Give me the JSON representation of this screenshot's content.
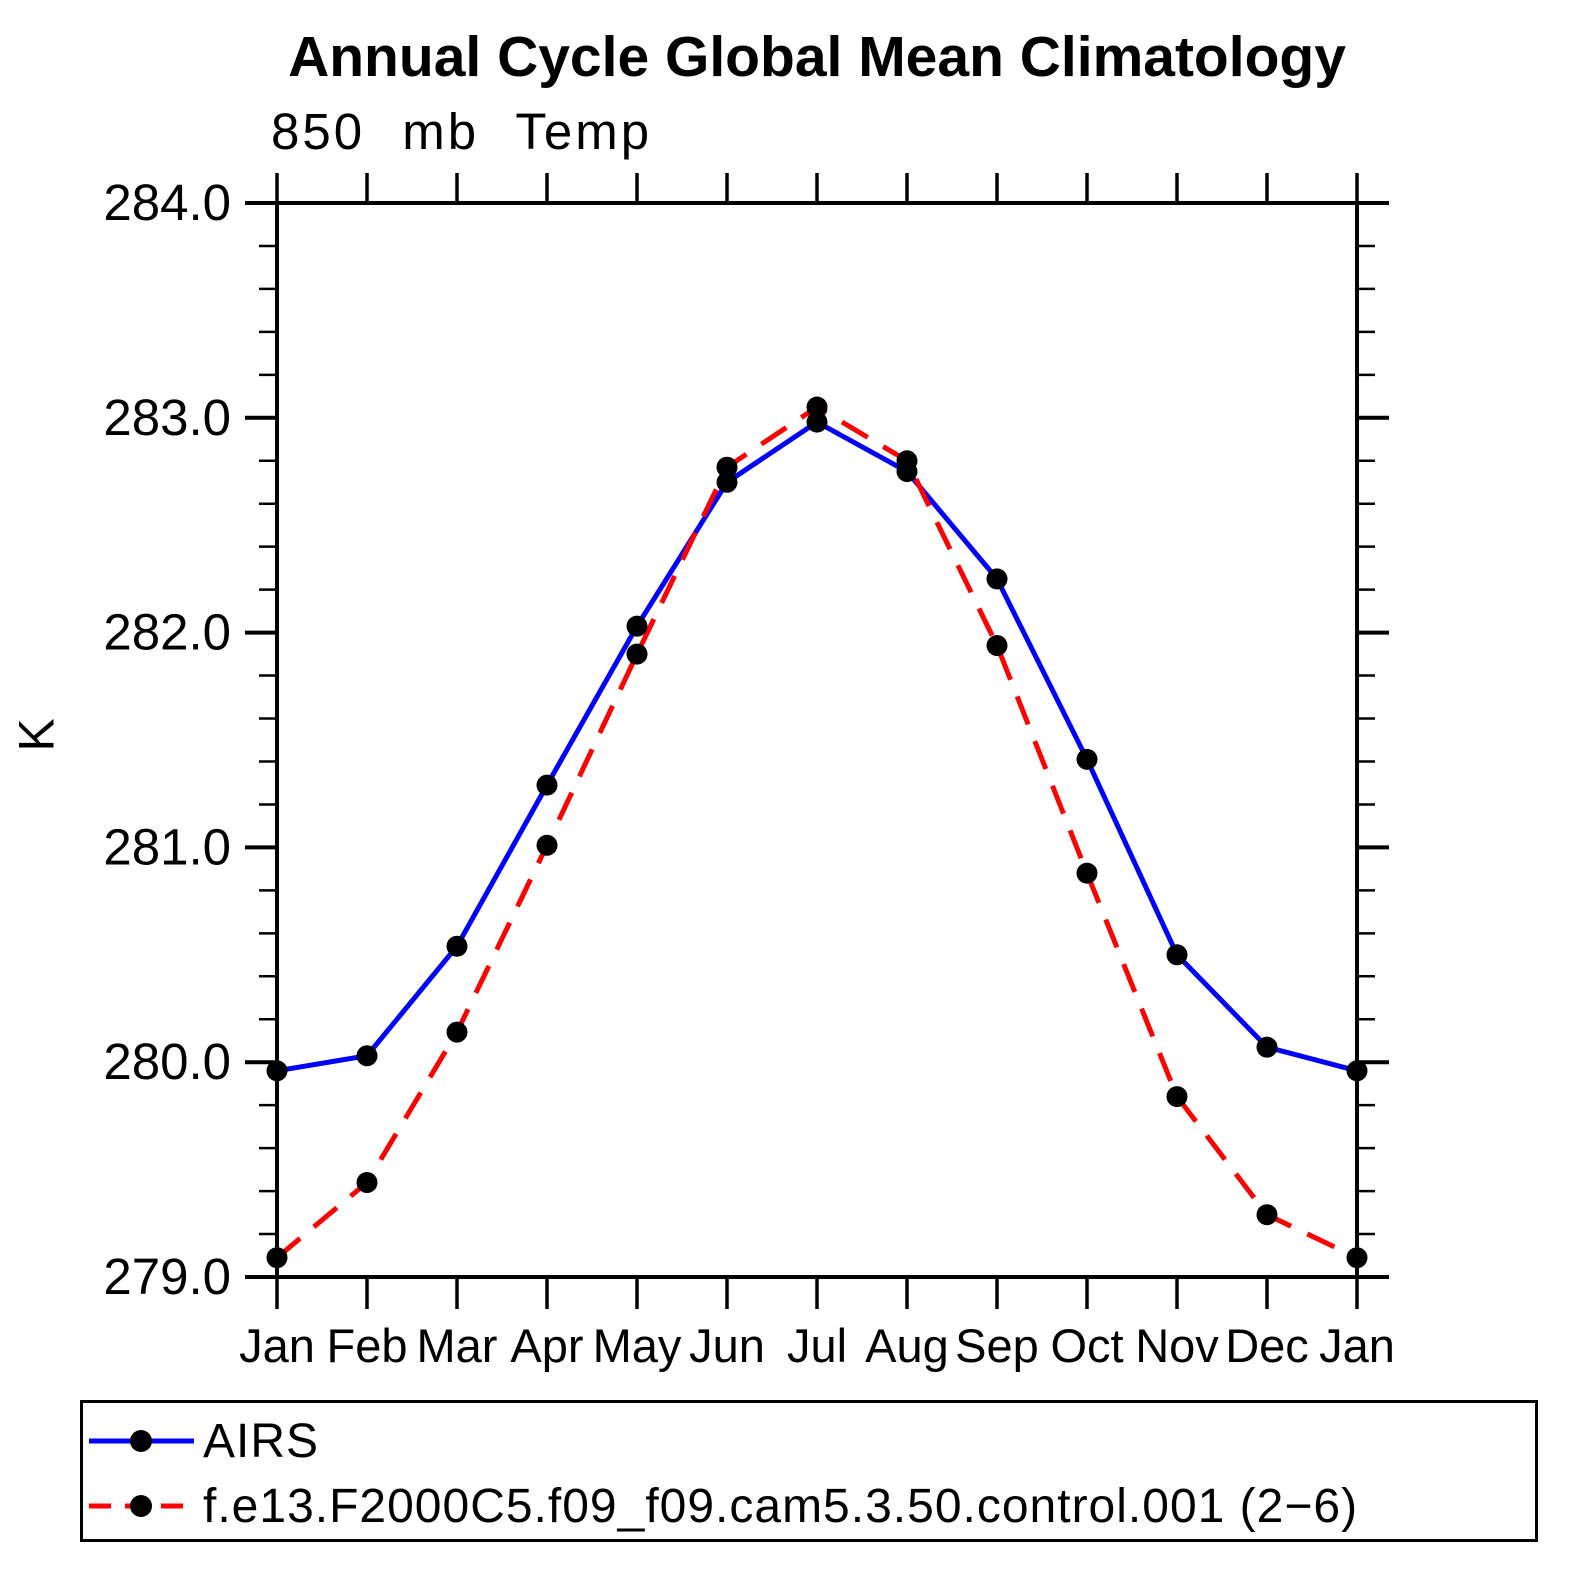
{
  "chart_data": {
    "type": "line",
    "title": "Annual Cycle Global Mean Climatology",
    "subtitle": "850 mb Temp",
    "ylabel": "K",
    "xlabel": "",
    "categories": [
      "Jan",
      "Feb",
      "Mar",
      "Apr",
      "May",
      "Jun",
      "Jul",
      "Aug",
      "Sep",
      "Oct",
      "Nov",
      "Dec",
      "Jan"
    ],
    "ylim": [
      279.0,
      284.0
    ],
    "y_ticks": [
      279.0,
      280.0,
      281.0,
      282.0,
      283.0,
      284.0
    ],
    "y_tick_labels": [
      "279.0",
      "280.0",
      "281.0",
      "282.0",
      "283.0",
      "284.0"
    ],
    "y_minor_step": 0.2,
    "grid": false,
    "legend_position": "bottom",
    "frame": "box-with-outward-ticks",
    "marker_color": "#000000",
    "axis_color": "#000000",
    "background_color": "#ffffff",
    "series": [
      {
        "name": "AIRS",
        "color": "#0000ff",
        "style": "solid",
        "marker": "circle",
        "values": [
          279.96,
          280.03,
          280.54,
          281.29,
          282.03,
          282.7,
          282.98,
          282.75,
          282.25,
          281.41,
          280.5,
          280.07,
          279.96
        ]
      },
      {
        "name": "f.e13.F2000C5.f09_f09.cam5.3.50.control.001 (2−6)",
        "color": "#ff0000",
        "style": "dashed",
        "marker": "circle",
        "values": [
          279.09,
          279.44,
          280.14,
          281.01,
          281.9,
          282.77,
          283.05,
          282.8,
          281.94,
          280.88,
          279.84,
          279.29,
          279.09
        ]
      }
    ]
  }
}
